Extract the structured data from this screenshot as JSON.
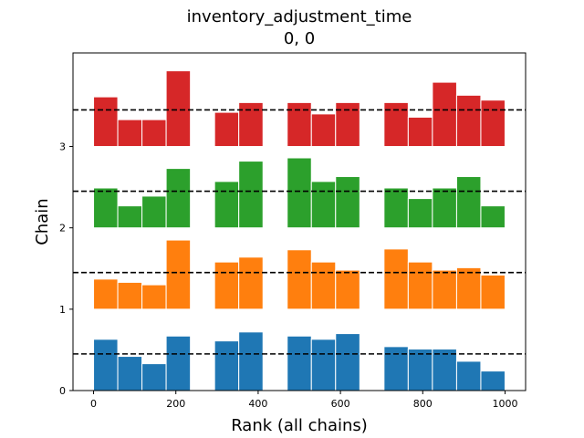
{
  "chart_data": {
    "type": "bar",
    "title": "inventory_adjustment_time",
    "subtitle": "0, 0",
    "xlabel": "Rank (all chains)",
    "ylabel": "Chain",
    "xlim": [
      -50,
      1050
    ],
    "ylim": [
      0,
      4.15
    ],
    "xticks": [
      0,
      200,
      400,
      600,
      800,
      1000
    ],
    "yticks": [
      0,
      1,
      2,
      3
    ],
    "reference_level": 0.45,
    "bin_edges": [
      0,
      58.8,
      117.6,
      176.4,
      235.3,
      294.1,
      352.9,
      411.8,
      470.6,
      529.4,
      588.2,
      647.1,
      705.9,
      764.7,
      823.5,
      882.4,
      941.2,
      1000
    ],
    "series": [
      {
        "chain": 0,
        "color": "#1f77b4",
        "values": [
          0.63,
          0.42,
          0.33,
          0.67,
          0,
          0.61,
          0.72,
          0,
          0.67,
          0.63,
          0.7,
          0,
          0.54,
          0.51,
          0.51,
          0.36,
          0.24
        ]
      },
      {
        "chain": 1,
        "color": "#ff7f0e",
        "values": [
          0.37,
          0.33,
          0.3,
          0.85,
          0,
          0.58,
          0.64,
          0,
          0.73,
          0.58,
          0.48,
          0,
          0.74,
          0.58,
          0.48,
          0.51,
          0.42
        ]
      },
      {
        "chain": 2,
        "color": "#2ca02c",
        "values": [
          0.49,
          0.27,
          0.39,
          0.73,
          0,
          0.57,
          0.82,
          0,
          0.86,
          0.57,
          0.63,
          0,
          0.49,
          0.36,
          0.49,
          0.63,
          0.27
        ]
      },
      {
        "chain": 3,
        "color": "#d62728",
        "values": [
          0.61,
          0.33,
          0.33,
          0.93,
          0,
          0.42,
          0.54,
          0,
          0.54,
          0.4,
          0.54,
          0,
          0.54,
          0.36,
          0.79,
          0.63,
          0.57
        ]
      }
    ]
  }
}
